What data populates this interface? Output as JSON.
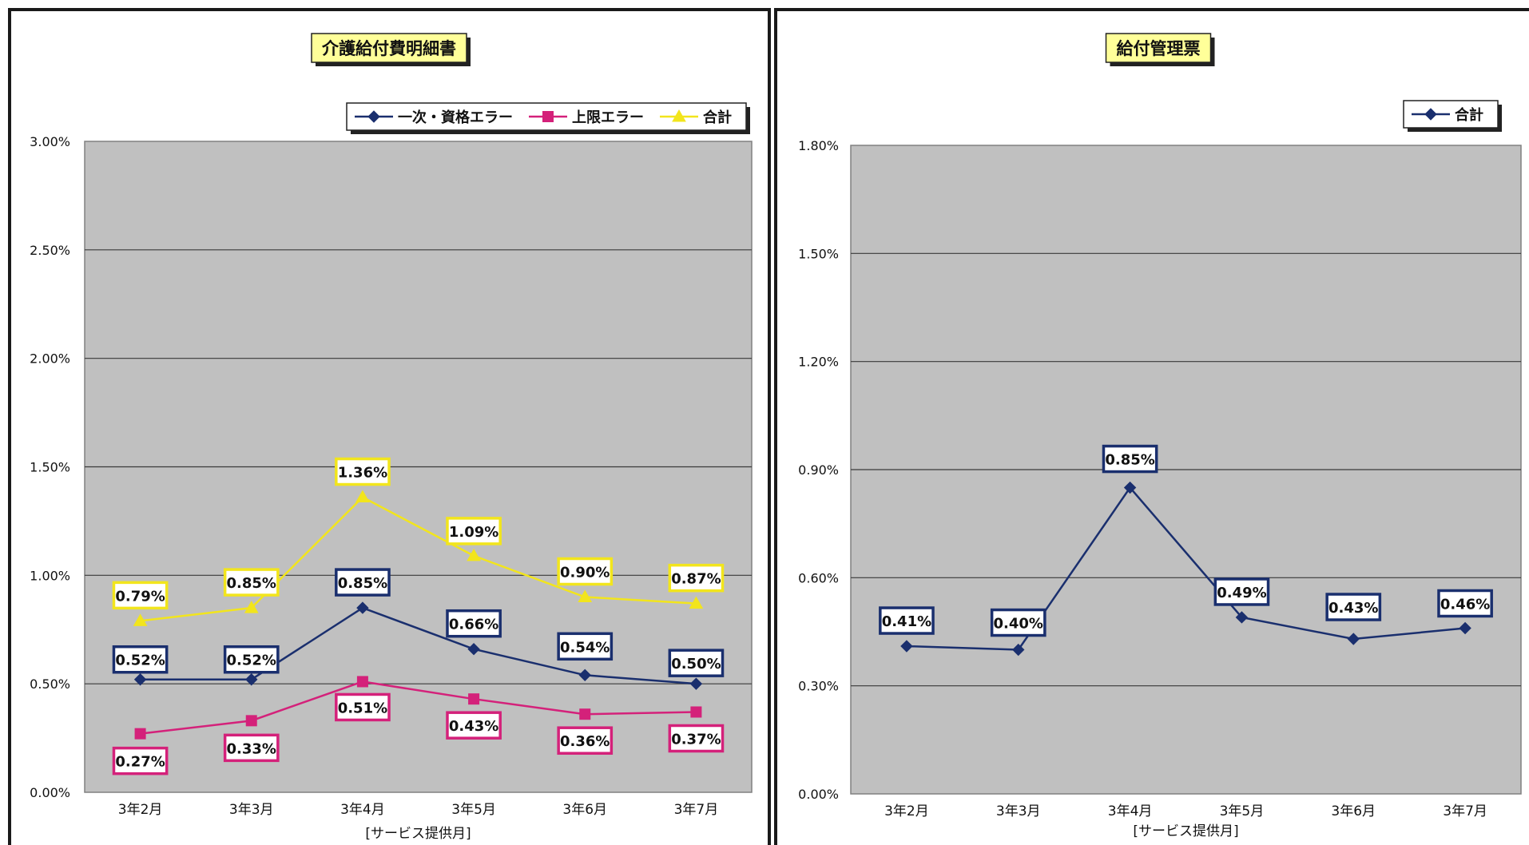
{
  "chart_data": [
    {
      "type": "line",
      "title": "介護給付費明細書",
      "xlabel": "[サービス提供月]",
      "ylabel": "",
      "categories": [
        "3年2月",
        "3年3月",
        "3年4月",
        "3年5月",
        "3年6月",
        "3年7月"
      ],
      "y_ticks": [
        "0.00%",
        "0.50%",
        "1.00%",
        "1.50%",
        "2.00%",
        "2.50%",
        "3.00%"
      ],
      "ylim": [
        0,
        3.0
      ],
      "grid": true,
      "legend_position": "top-right",
      "series": [
        {
          "name": "一次・資格エラー",
          "color": "#1a2f6e",
          "marker": "diamond",
          "values": [
            0.52,
            0.52,
            0.85,
            0.66,
            0.54,
            0.5
          ],
          "labels": [
            "0.52%",
            "0.52%",
            "0.85%",
            "0.66%",
            "0.54%",
            "0.50%"
          ]
        },
        {
          "name": "上限エラー",
          "color": "#d4217a",
          "marker": "square",
          "values": [
            0.27,
            0.33,
            0.51,
            0.43,
            0.36,
            0.37
          ],
          "labels": [
            "0.27%",
            "0.33%",
            "0.51%",
            "0.43%",
            "0.36%",
            "0.37%"
          ]
        },
        {
          "name": "合計",
          "color": "#f2e51c",
          "marker": "triangle",
          "values": [
            0.79,
            0.85,
            1.36,
            1.09,
            0.9,
            0.87
          ],
          "labels": [
            "0.79%",
            "0.85%",
            "1.36%",
            "1.09%",
            "0.90%",
            "0.87%"
          ]
        }
      ]
    },
    {
      "type": "line",
      "title": "給付管理票",
      "xlabel": "[サービス提供月]",
      "ylabel": "",
      "categories": [
        "3年2月",
        "3年3月",
        "3年4月",
        "3年5月",
        "3年6月",
        "3年7月"
      ],
      "y_ticks": [
        "0.00%",
        "0.30%",
        "0.60%",
        "0.90%",
        "1.20%",
        "1.50%",
        "1.80%"
      ],
      "ylim": [
        0,
        1.8
      ],
      "grid": true,
      "legend_position": "top-right",
      "series": [
        {
          "name": "合計",
          "color": "#1a2f6e",
          "marker": "diamond",
          "values": [
            0.41,
            0.4,
            0.85,
            0.49,
            0.43,
            0.46
          ],
          "labels": [
            "0.41%",
            "0.40%",
            "0.85%",
            "0.49%",
            "0.43%",
            "0.46%"
          ]
        }
      ]
    }
  ]
}
